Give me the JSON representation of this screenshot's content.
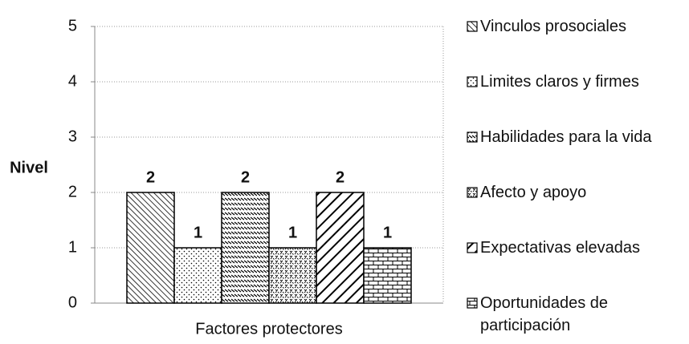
{
  "chart_data": {
    "type": "bar",
    "categories": [
      "Factores protectores"
    ],
    "y_label": "Nivel",
    "series": [
      {
        "name": "Vinculos prosociales",
        "pattern": "diagonal-dense",
        "values": [
          2
        ]
      },
      {
        "name": "Limites claros y firmes",
        "pattern": "dots",
        "values": [
          1
        ]
      },
      {
        "name": "Habilidades para la vida",
        "pattern": "dashes",
        "values": [
          2
        ]
      },
      {
        "name": "Afecto y apoyo",
        "pattern": "dots-dense",
        "values": [
          1
        ]
      },
      {
        "name": "Expectativas elevadas",
        "pattern": "diagonal-wide",
        "values": [
          2
        ]
      },
      {
        "name": "Oportunidades de participación",
        "pattern": "brick",
        "values": [
          1
        ]
      }
    ],
    "ylim": [
      0,
      5
    ],
    "yticks": [
      0,
      1,
      2,
      3,
      4,
      5
    ],
    "grid": true,
    "legend": "right"
  }
}
